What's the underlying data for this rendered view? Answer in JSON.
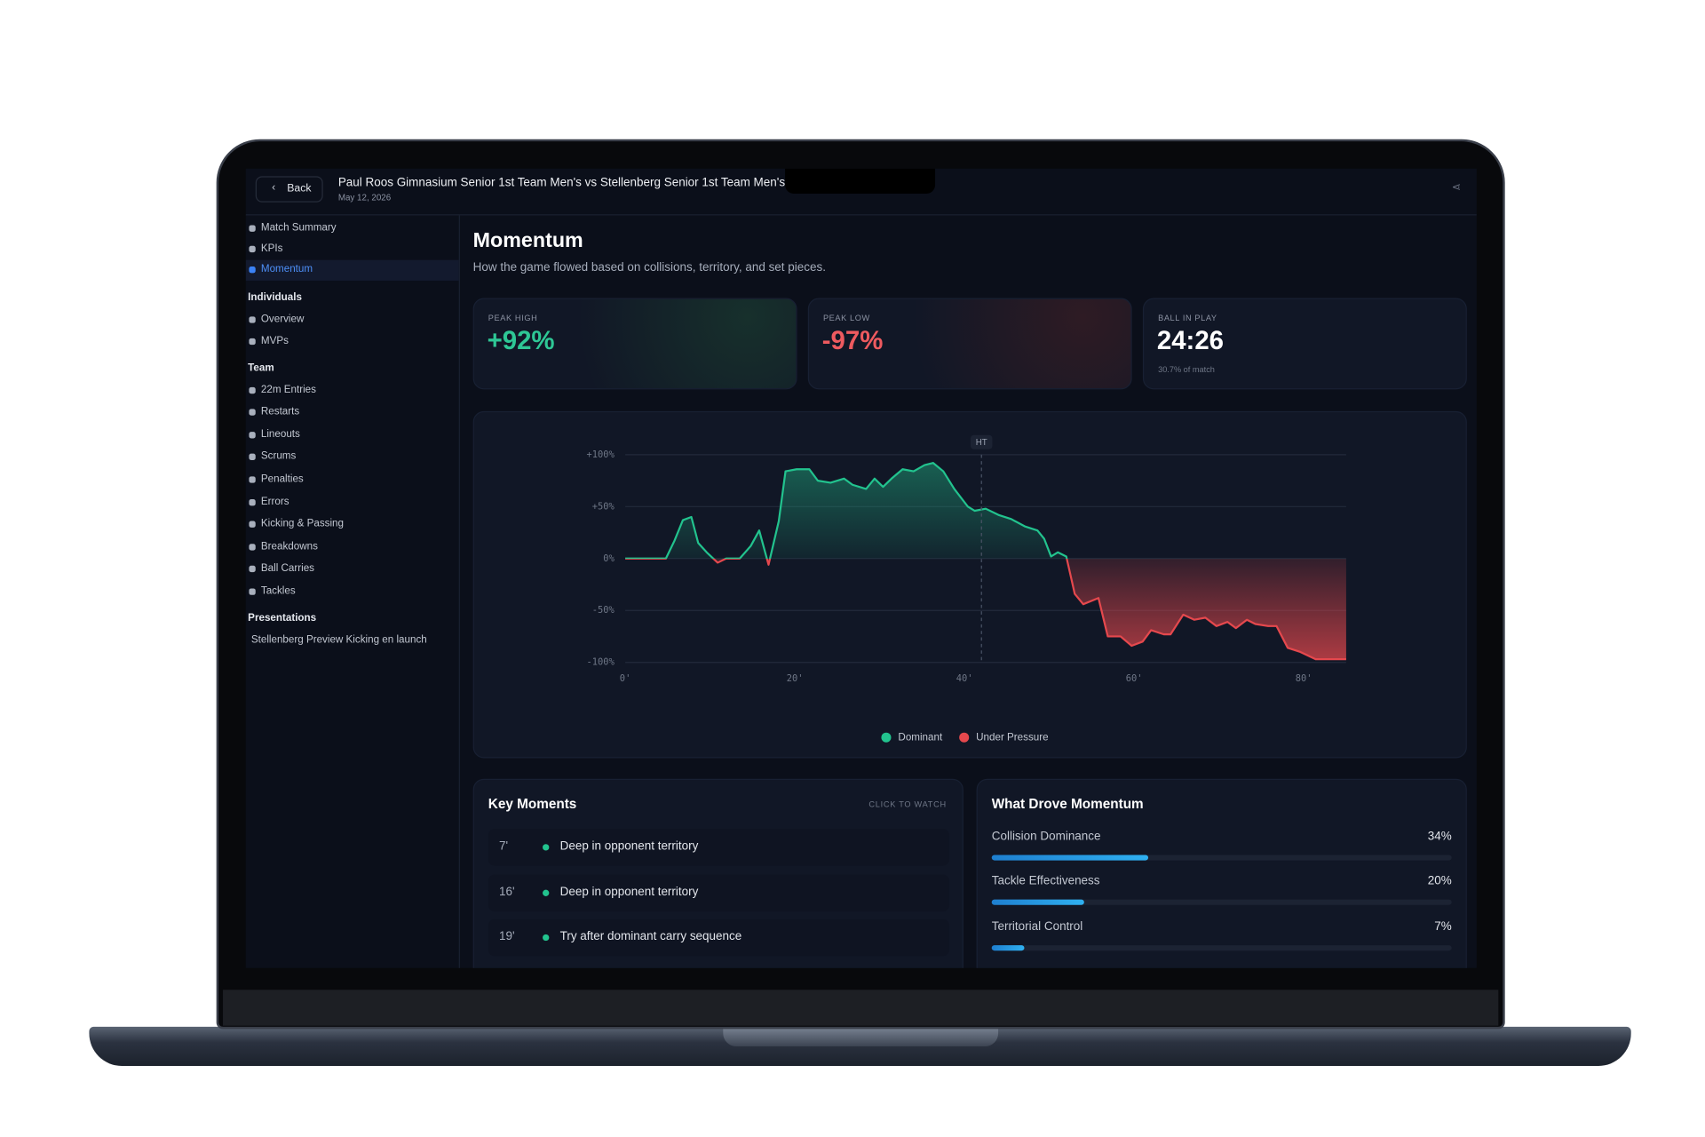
{
  "header": {
    "back": "Back",
    "title": "Paul Roos Gimnasium Senior 1st Team Men's vs Stellenberg Senior 1st Team Men's",
    "date": "May 12, 2026"
  },
  "sidebar": {
    "items": [
      "Match Summary",
      "KPIs",
      "Momentum"
    ],
    "active": 2,
    "sections": [
      {
        "title": "Individuals",
        "items": [
          "Overview",
          "MVPs"
        ]
      },
      {
        "title": "Team",
        "items": [
          "22m Entries",
          "Restarts",
          "Lineouts",
          "Scrums",
          "Penalties",
          "Errors",
          "Kicking & Passing",
          "Breakdowns",
          "Ball Carries",
          "Tackles"
        ]
      },
      {
        "title": "Presentations",
        "items": [
          "Stellenberg Preview Kicking en launch"
        ]
      }
    ]
  },
  "page": {
    "title": "Momentum",
    "subtitle": "How the game flowed based on collisions, territory, and set pieces."
  },
  "stats": [
    {
      "label": "PEAK HIGH",
      "value": "+92%",
      "color": "#2ec795"
    },
    {
      "label": "PEAK LOW",
      "value": "-97%",
      "color": "#ee5a5f"
    },
    {
      "label": "BALL IN PLAY",
      "value": "24:26",
      "note": "30.7% of match",
      "color": "#ffffff"
    }
  ],
  "chart_data": {
    "type": "line",
    "x": [
      0,
      4.8,
      5.8,
      6.8,
      7.8,
      8.6,
      9.6,
      10.9,
      11.9,
      13.5,
      14.8,
      15.8,
      16.9,
      18.1,
      18.9,
      20.2,
      21.7,
      22.7,
      24.2,
      25.8,
      26.8,
      28.4,
      29.4,
      30.4,
      31.4,
      32.7,
      34.0,
      35.3,
      36.3,
      37.5,
      38.8,
      40.4,
      41.2,
      42.5,
      44.0,
      45.5,
      47.1,
      48.6,
      49.4,
      50.2,
      51.0,
      52.0,
      53.0,
      54.0,
      55.8,
      56.9,
      58.4,
      59.7,
      61.0,
      62.0,
      63.5,
      64.3,
      65.8,
      67.1,
      68.4,
      69.7,
      71.0,
      72.0,
      73.3,
      74.3,
      75.8,
      76.8,
      78.1,
      79.6,
      81.4,
      85.0
    ],
    "values": [
      0,
      0,
      17,
      37,
      40,
      15,
      6,
      -4,
      0,
      0,
      12,
      27,
      -6,
      36,
      84,
      86,
      86,
      75,
      73,
      77,
      71,
      67,
      77,
      69,
      77,
      86,
      84,
      90,
      92,
      84,
      67,
      50,
      46,
      48,
      42,
      38,
      31,
      27,
      19,
      2,
      6,
      2,
      -34,
      -44,
      -38,
      -75,
      -75,
      -84,
      -80,
      -69,
      -73,
      -73,
      -54,
      -59,
      -57,
      -65,
      -61,
      -67,
      -59,
      -63,
      -65,
      -65,
      -86,
      -90,
      -97,
      -97
    ],
    "xlim": [
      0,
      85
    ],
    "ylim": [
      -100,
      100
    ],
    "xticks": [
      {
        "value": 0,
        "label": "0'"
      },
      {
        "value": 20,
        "label": "20'"
      },
      {
        "value": 40,
        "label": "40'"
      },
      {
        "value": 60,
        "label": "60'"
      },
      {
        "value": 80,
        "label": "80'"
      }
    ],
    "yticks": [
      {
        "value": 100,
        "label": "+100%"
      },
      {
        "value": 50,
        "label": "+50%"
      },
      {
        "value": 0,
        "label": "0%"
      },
      {
        "value": -50,
        "label": "-50%"
      },
      {
        "value": -100,
        "label": "-100%"
      }
    ],
    "grid": true,
    "annotations": [
      {
        "x": 42,
        "label": "HT"
      }
    ],
    "legend": [
      {
        "name": "Dominant",
        "color": "#22c38e"
      },
      {
        "name": "Under Pressure",
        "color": "#e5484d"
      }
    ]
  },
  "key_moments": {
    "title": "Key Moments",
    "action": "CLICK TO WATCH",
    "items": [
      {
        "time": "7'",
        "text": "Deep in opponent territory"
      },
      {
        "time": "16'",
        "text": "Deep in opponent territory"
      },
      {
        "time": "19'",
        "text": "Try after dominant carry sequence"
      }
    ]
  },
  "drivers": {
    "title": "What Drove Momentum",
    "items": [
      {
        "name": "Collision Dominance",
        "value": 34,
        "value_label": "34%"
      },
      {
        "name": "Tackle Effectiveness",
        "value": 20,
        "value_label": "20%"
      },
      {
        "name": "Territorial Control",
        "value": 7,
        "value_label": "7%"
      }
    ]
  }
}
